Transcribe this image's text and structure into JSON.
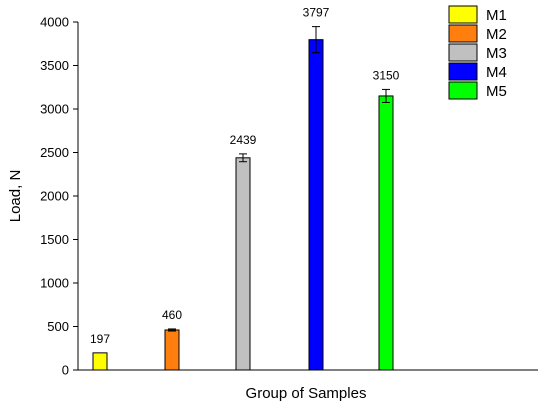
{
  "chart_data": {
    "type": "bar",
    "title": "",
    "xlabel": "Group of Samples",
    "ylabel": "Load, N",
    "ylim": [
      0,
      4000
    ],
    "yticks": [
      "0",
      "500",
      "1000",
      "1500",
      "2000",
      "2500",
      "3000",
      "3500",
      "4000"
    ],
    "grid": false,
    "legend_position": "top-right",
    "series": [
      {
        "name": "M1",
        "value": 197,
        "label": "197",
        "error": 0,
        "color": "#ffff00"
      },
      {
        "name": "M2",
        "value": 460,
        "label": "460",
        "error": 12,
        "color": "#ff7f0e"
      },
      {
        "name": "M3",
        "value": 2439,
        "label": "2439",
        "error": 45,
        "color": "#c0c0c0"
      },
      {
        "name": "M4",
        "value": 3797,
        "label": "3797",
        "error": 150,
        "color": "#0000ff"
      },
      {
        "name": "M5",
        "value": 3150,
        "label": "3150",
        "error": 75,
        "color": "#00ff00"
      }
    ]
  }
}
